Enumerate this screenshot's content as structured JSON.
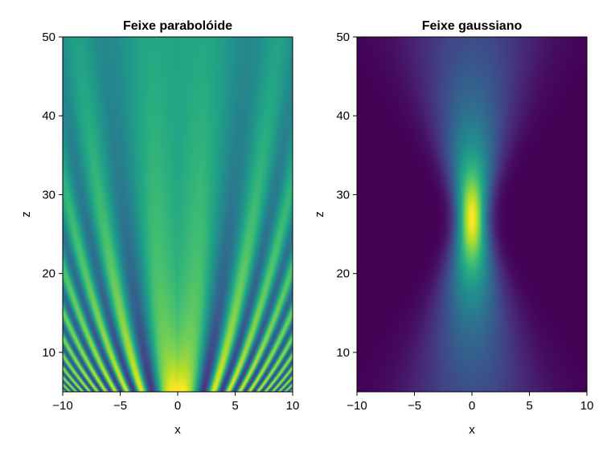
{
  "chart_data": [
    {
      "type": "heatmap",
      "title": "Feixe parabolóide",
      "xlabel": "x",
      "ylabel": "z",
      "xlim": [
        -10,
        10
      ],
      "ylim": [
        5,
        50
      ],
      "xticks": [
        -10,
        -5,
        0,
        5,
        10
      ],
      "yticks": [
        10,
        20,
        30,
        40,
        50
      ],
      "xtick_labels": [
        "−10",
        "−5",
        "0",
        "5",
        "10"
      ],
      "ytick_labels": [
        "10",
        "20",
        "30",
        "40",
        "50"
      ],
      "colormap": "viridis",
      "field": "parabolic",
      "grid": false
    },
    {
      "type": "heatmap",
      "title": "Feixe gaussiano",
      "xlabel": "x",
      "ylabel": "z",
      "xlim": [
        -10,
        10
      ],
      "ylim": [
        5,
        50
      ],
      "xticks": [
        -10,
        -5,
        0,
        5,
        10
      ],
      "yticks": [
        10,
        20,
        30,
        40,
        50
      ],
      "xtick_labels": [
        "−10",
        "−5",
        "0",
        "5",
        "10"
      ],
      "ytick_labels": [
        "10",
        "20",
        "30",
        "40",
        "50"
      ],
      "colormap": "viridis",
      "field": "gaussian",
      "focus_z": 27,
      "grid": false
    }
  ]
}
